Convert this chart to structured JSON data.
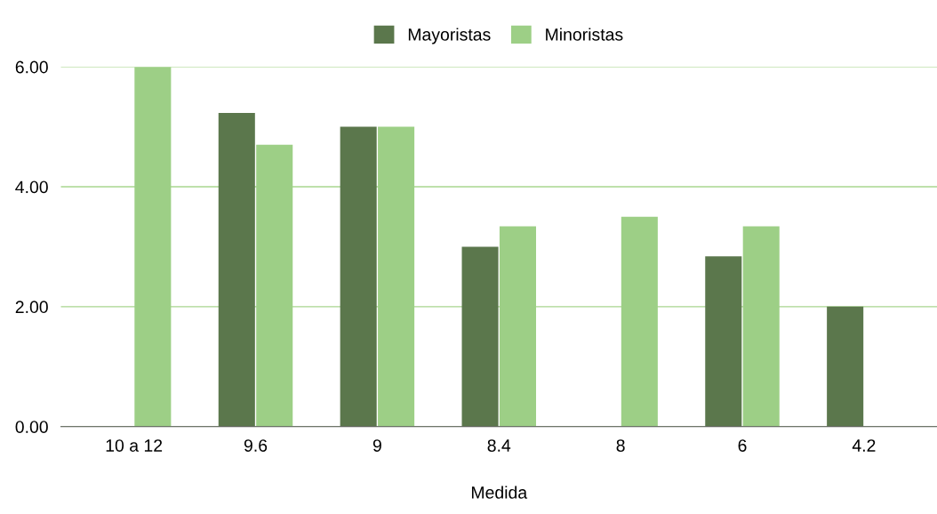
{
  "chart_data": {
    "type": "bar",
    "xlabel": "Medida",
    "categories": [
      "10 a 12",
      "9.6",
      "9",
      "8.4",
      "8",
      "6",
      "4.2"
    ],
    "series": [
      {
        "name": "Mayoristas",
        "color": "#5b774c",
        "values": [
          null,
          5.23,
          5.0,
          3.0,
          null,
          2.84,
          2.0
        ]
      },
      {
        "name": "Minoristas",
        "color": "#9dcf86",
        "values": [
          6.0,
          4.7,
          5.0,
          3.34,
          3.5,
          3.34,
          null
        ]
      }
    ],
    "ylim": [
      0,
      6
    ],
    "yticks": [
      {
        "value": 0,
        "label": "0.00"
      },
      {
        "value": 2,
        "label": "2.00"
      },
      {
        "value": 4,
        "label": "4.00"
      },
      {
        "value": 6,
        "label": "6.00"
      }
    ],
    "grid": "y",
    "legend": "top"
  }
}
